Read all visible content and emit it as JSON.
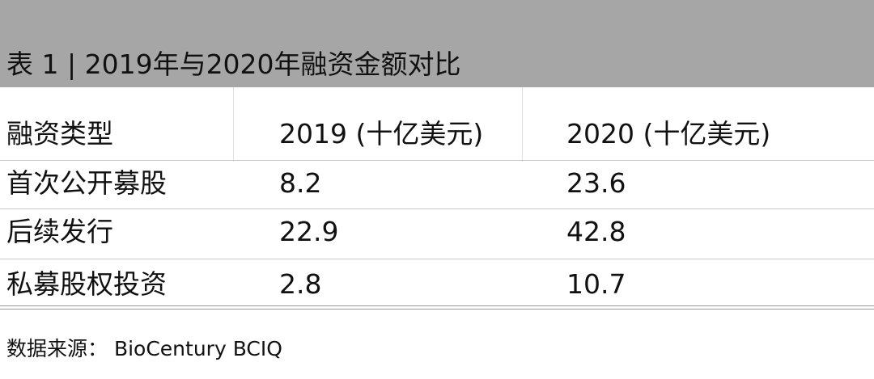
{
  "header": {
    "title": "表 1 | 2019年与2020年融资金额对比"
  },
  "table": {
    "columns": [
      "融资类型",
      "2019 (十亿美元)",
      "2020 (十亿美元)"
    ],
    "rows": [
      [
        "首次公开募股",
        "8.2",
        "23.6"
      ],
      [
        "后续发行",
        "22.9",
        "42.8"
      ],
      [
        "私募股权投资",
        "2.8",
        "10.7"
      ]
    ]
  },
  "source": "数据来源： BioCentury BCIQ"
}
